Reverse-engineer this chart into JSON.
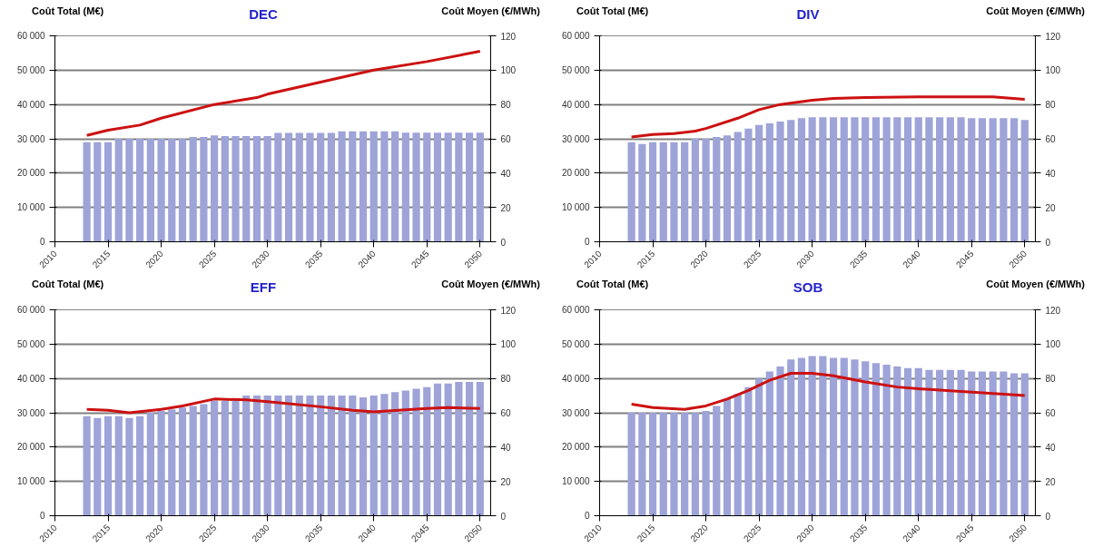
{
  "chart_data": [
    {
      "type": "bar",
      "title": "DEC",
      "ylabel": "Coût Total (M€)",
      "y2label": "Coût Moyen (€/MWh)",
      "x": [
        2013,
        2014,
        2015,
        2016,
        2017,
        2018,
        2019,
        2020,
        2021,
        2022,
        2023,
        2024,
        2025,
        2026,
        2027,
        2028,
        2029,
        2030,
        2031,
        2032,
        2033,
        2034,
        2035,
        2036,
        2037,
        2038,
        2039,
        2040,
        2041,
        2042,
        2043,
        2044,
        2045,
        2046,
        2047,
        2048,
        2049,
        2050
      ],
      "xlim": [
        2010,
        2051
      ],
      "xticks": [
        2010,
        2015,
        2020,
        2025,
        2030,
        2035,
        2040,
        2045,
        2050
      ],
      "ylim": [
        0,
        60000
      ],
      "yticks": [
        0,
        {
          "value": 10000,
          "label": "10 000"
        },
        {
          "value": 20000,
          "label": "20 000"
        },
        {
          "value": 30000,
          "label": "30 000"
        },
        {
          "value": 40000,
          "label": "40 000"
        },
        {
          "value": 50000,
          "label": "50 000"
        },
        {
          "value": 60000,
          "label": "60 000"
        }
      ],
      "y2lim": [
        0,
        120
      ],
      "y2ticks": [
        0,
        20,
        40,
        60,
        80,
        100,
        120
      ],
      "grid": "y",
      "series": [
        {
          "color": "#9ea3d8",
          "values": [
            29000,
            29000,
            29000,
            30000,
            30000,
            30000,
            30000,
            30000,
            30000,
            30000,
            30500,
            30500,
            31000,
            30800,
            30800,
            30800,
            30800,
            30800,
            31700,
            31700,
            31700,
            31700,
            31700,
            31700,
            32200,
            32200,
            32200,
            32200,
            32200,
            32200,
            31800,
            31800,
            31800,
            31800,
            31800,
            31800,
            31800,
            31800
          ]
        },
        {
          "type": "line",
          "axis": "y2",
          "color": "#cc1111",
          "x": [
            2013,
            2015,
            2018,
            2020,
            2025,
            2029,
            2030,
            2035,
            2040,
            2045,
            2050
          ],
          "values": [
            62,
            65,
            68,
            72,
            80,
            84,
            86,
            93,
            100,
            105,
            111
          ]
        }
      ]
    },
    {
      "type": "bar",
      "title": "DIV",
      "ylabel": "Coût Total (M€)",
      "y2label": "Coût Moyen (€/MWh)",
      "x": [
        2013,
        2014,
        2015,
        2016,
        2017,
        2018,
        2019,
        2020,
        2021,
        2022,
        2023,
        2024,
        2025,
        2026,
        2027,
        2028,
        2029,
        2030,
        2031,
        2032,
        2033,
        2034,
        2035,
        2036,
        2037,
        2038,
        2039,
        2040,
        2041,
        2042,
        2043,
        2044,
        2045,
        2046,
        2047,
        2048,
        2049,
        2050
      ],
      "xlim": [
        2010,
        2051
      ],
      "xticks": [
        2010,
        2015,
        2020,
        2025,
        2030,
        2035,
        2040,
        2045,
        2050
      ],
      "ylim": [
        0,
        60000
      ],
      "yticks": [
        0,
        {
          "value": 10000,
          "label": "10 000"
        },
        {
          "value": 20000,
          "label": "20 000"
        },
        {
          "value": 30000,
          "label": "30 000"
        },
        {
          "value": 40000,
          "label": "40 000"
        },
        {
          "value": 50000,
          "label": "50 000"
        },
        {
          "value": 60000,
          "label": "60 000"
        }
      ],
      "y2lim": [
        0,
        120
      ],
      "y2ticks": [
        0,
        20,
        40,
        60,
        80,
        100,
        120
      ],
      "grid": "y",
      "series": [
        {
          "color": "#9ea3d8",
          "values": [
            29000,
            28500,
            29000,
            29000,
            29000,
            29000,
            30000,
            30000,
            30500,
            31000,
            32000,
            33000,
            34000,
            34500,
            35000,
            35500,
            36000,
            36300,
            36300,
            36300,
            36300,
            36300,
            36300,
            36300,
            36300,
            36300,
            36300,
            36300,
            36300,
            36300,
            36300,
            36300,
            36000,
            36000,
            36000,
            36000,
            36000,
            35500
          ]
        },
        {
          "type": "line",
          "axis": "y2",
          "color": "#cc1111",
          "x": [
            2013,
            2015,
            2017,
            2019,
            2020,
            2023,
            2025,
            2027,
            2030,
            2032,
            2035,
            2040,
            2047,
            2050
          ],
          "values": [
            61,
            62.5,
            63,
            64.5,
            66,
            72,
            77,
            80,
            82.5,
            83.5,
            84,
            84.5,
            84.5,
            83
          ]
        }
      ]
    },
    {
      "type": "bar",
      "title": "EFF",
      "ylabel": "Coût Total (M€)",
      "y2label": "Coût Moyen (€/MWh)",
      "x": [
        2013,
        2014,
        2015,
        2016,
        2017,
        2018,
        2019,
        2020,
        2021,
        2022,
        2023,
        2024,
        2025,
        2026,
        2027,
        2028,
        2029,
        2030,
        2031,
        2032,
        2033,
        2034,
        2035,
        2036,
        2037,
        2038,
        2039,
        2040,
        2041,
        2042,
        2043,
        2044,
        2045,
        2046,
        2047,
        2048,
        2049,
        2050
      ],
      "xlim": [
        2010,
        2051
      ],
      "xticks": [
        2010,
        2015,
        2020,
        2025,
        2030,
        2035,
        2040,
        2045,
        2050
      ],
      "ylim": [
        0,
        60000
      ],
      "yticks": [
        0,
        {
          "value": 10000,
          "label": "10 000"
        },
        {
          "value": 20000,
          "label": "20 000"
        },
        {
          "value": 30000,
          "label": "30 000"
        },
        {
          "value": 40000,
          "label": "40 000"
        },
        {
          "value": 50000,
          "label": "50 000"
        },
        {
          "value": 60000,
          "label": "60 000"
        }
      ],
      "y2lim": [
        0,
        120
      ],
      "y2ticks": [
        0,
        20,
        40,
        60,
        80,
        100,
        120
      ],
      "grid": "y",
      "series": [
        {
          "color": "#9ea3d8",
          "values": [
            29000,
            28500,
            29000,
            29000,
            28500,
            29000,
            30000,
            30500,
            31000,
            31500,
            32000,
            32500,
            33500,
            33500,
            34000,
            35000,
            35000,
            35000,
            35000,
            35000,
            35000,
            35000,
            35000,
            35000,
            35000,
            35000,
            34500,
            35000,
            35500,
            36000,
            36500,
            37000,
            37500,
            38500,
            38500,
            39000,
            39000,
            39000
          ]
        },
        {
          "type": "line",
          "axis": "y2",
          "color": "#cc1111",
          "x": [
            2013,
            2015,
            2017,
            2020,
            2022,
            2025,
            2028,
            2030,
            2035,
            2038,
            2040,
            2045,
            2047,
            2050
          ],
          "values": [
            62,
            61.5,
            60,
            62,
            64,
            68,
            67.5,
            66.5,
            63.5,
            61.5,
            60.5,
            62.5,
            63,
            62.5
          ]
        }
      ]
    },
    {
      "type": "bar",
      "title": "SOB",
      "ylabel": "Coût Total (M€)",
      "y2label": "Coût Moyen (€/MWh)",
      "x": [
        2013,
        2014,
        2015,
        2016,
        2017,
        2018,
        2019,
        2020,
        2021,
        2022,
        2023,
        2024,
        2025,
        2026,
        2027,
        2028,
        2029,
        2030,
        2031,
        2032,
        2033,
        2034,
        2035,
        2036,
        2037,
        2038,
        2039,
        2040,
        2041,
        2042,
        2043,
        2044,
        2045,
        2046,
        2047,
        2048,
        2049,
        2050
      ],
      "xlim": [
        2010,
        2051
      ],
      "xticks": [
        2010,
        2015,
        2020,
        2025,
        2030,
        2035,
        2040,
        2045,
        2050
      ],
      "ylim": [
        0,
        60000
      ],
      "yticks": [
        0,
        {
          "value": 10000,
          "label": "10 000"
        },
        {
          "value": 20000,
          "label": "20 000"
        },
        {
          "value": 30000,
          "label": "30 000"
        },
        {
          "value": 40000,
          "label": "40 000"
        },
        {
          "value": 50000,
          "label": "50 000"
        },
        {
          "value": 60000,
          "label": "60 000"
        }
      ],
      "y2lim": [
        0,
        120
      ],
      "y2ticks": [
        0,
        20,
        40,
        60,
        80,
        100,
        120
      ],
      "grid": "y",
      "series": [
        {
          "color": "#9ea3d8",
          "values": [
            30000,
            30000,
            30000,
            30000,
            30000,
            30000,
            30000,
            30500,
            32000,
            34000,
            35500,
            37500,
            40000,
            42000,
            43500,
            45500,
            46000,
            46500,
            46500,
            46000,
            46000,
            45500,
            45000,
            44500,
            44000,
            43500,
            43000,
            43000,
            42500,
            42500,
            42500,
            42500,
            42000,
            42000,
            42000,
            42000,
            41500,
            41500
          ]
        },
        {
          "type": "line",
          "axis": "y2",
          "color": "#cc1111",
          "x": [
            2013,
            2015,
            2018,
            2020,
            2022,
            2024,
            2026,
            2028,
            2030,
            2032,
            2035,
            2038,
            2040,
            2045,
            2050
          ],
          "values": [
            65,
            63,
            62,
            64,
            68,
            73,
            79,
            83,
            83,
            81.5,
            78,
            75,
            74,
            72,
            70
          ]
        }
      ]
    }
  ]
}
